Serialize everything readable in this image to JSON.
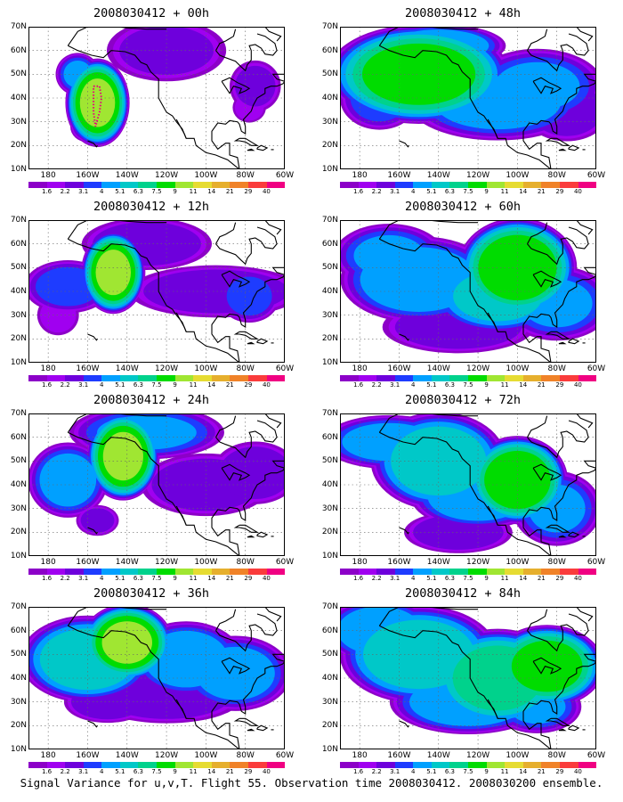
{
  "panels": [
    {
      "title": "2008030412 + 00h",
      "lead": "00h"
    },
    {
      "title": "2008030412 + 48h",
      "lead": "48h"
    },
    {
      "title": "2008030412 + 12h",
      "lead": "12h"
    },
    {
      "title": "2008030412 + 60h",
      "lead": "60h"
    },
    {
      "title": "2008030412 + 24h",
      "lead": "24h"
    },
    {
      "title": "2008030412 + 72h",
      "lead": "72h"
    },
    {
      "title": "2008030412 + 36h",
      "lead": "36h"
    },
    {
      "title": "2008030412 + 84h",
      "lead": "84h"
    }
  ],
  "lat_labels": [
    "70N",
    "60N",
    "50N",
    "40N",
    "30N",
    "20N",
    "10N"
  ],
  "lon_labels": [
    "180",
    "160W",
    "140W",
    "120W",
    "100W",
    "80W",
    "60W"
  ],
  "colorbar": {
    "labels": [
      "1.6",
      "2.2",
      "3.1",
      "4",
      "5.1",
      "6.3",
      "7.5",
      "9",
      "11",
      "14",
      "21",
      "29",
      "40"
    ],
    "colors": [
      "#8c00c8",
      "#a000f0",
      "#6e00dc",
      "#1e3cff",
      "#00a0ff",
      "#00c8c8",
      "#00d28c",
      "#00dc00",
      "#a0e632",
      "#e6dc32",
      "#e6af2d",
      "#f08228",
      "#fa3c3c",
      "#f00082"
    ]
  },
  "caption": "Signal Variance for u,v,T. Flight 55. Observation time 2008030412. 2008030200 ensemble."
}
